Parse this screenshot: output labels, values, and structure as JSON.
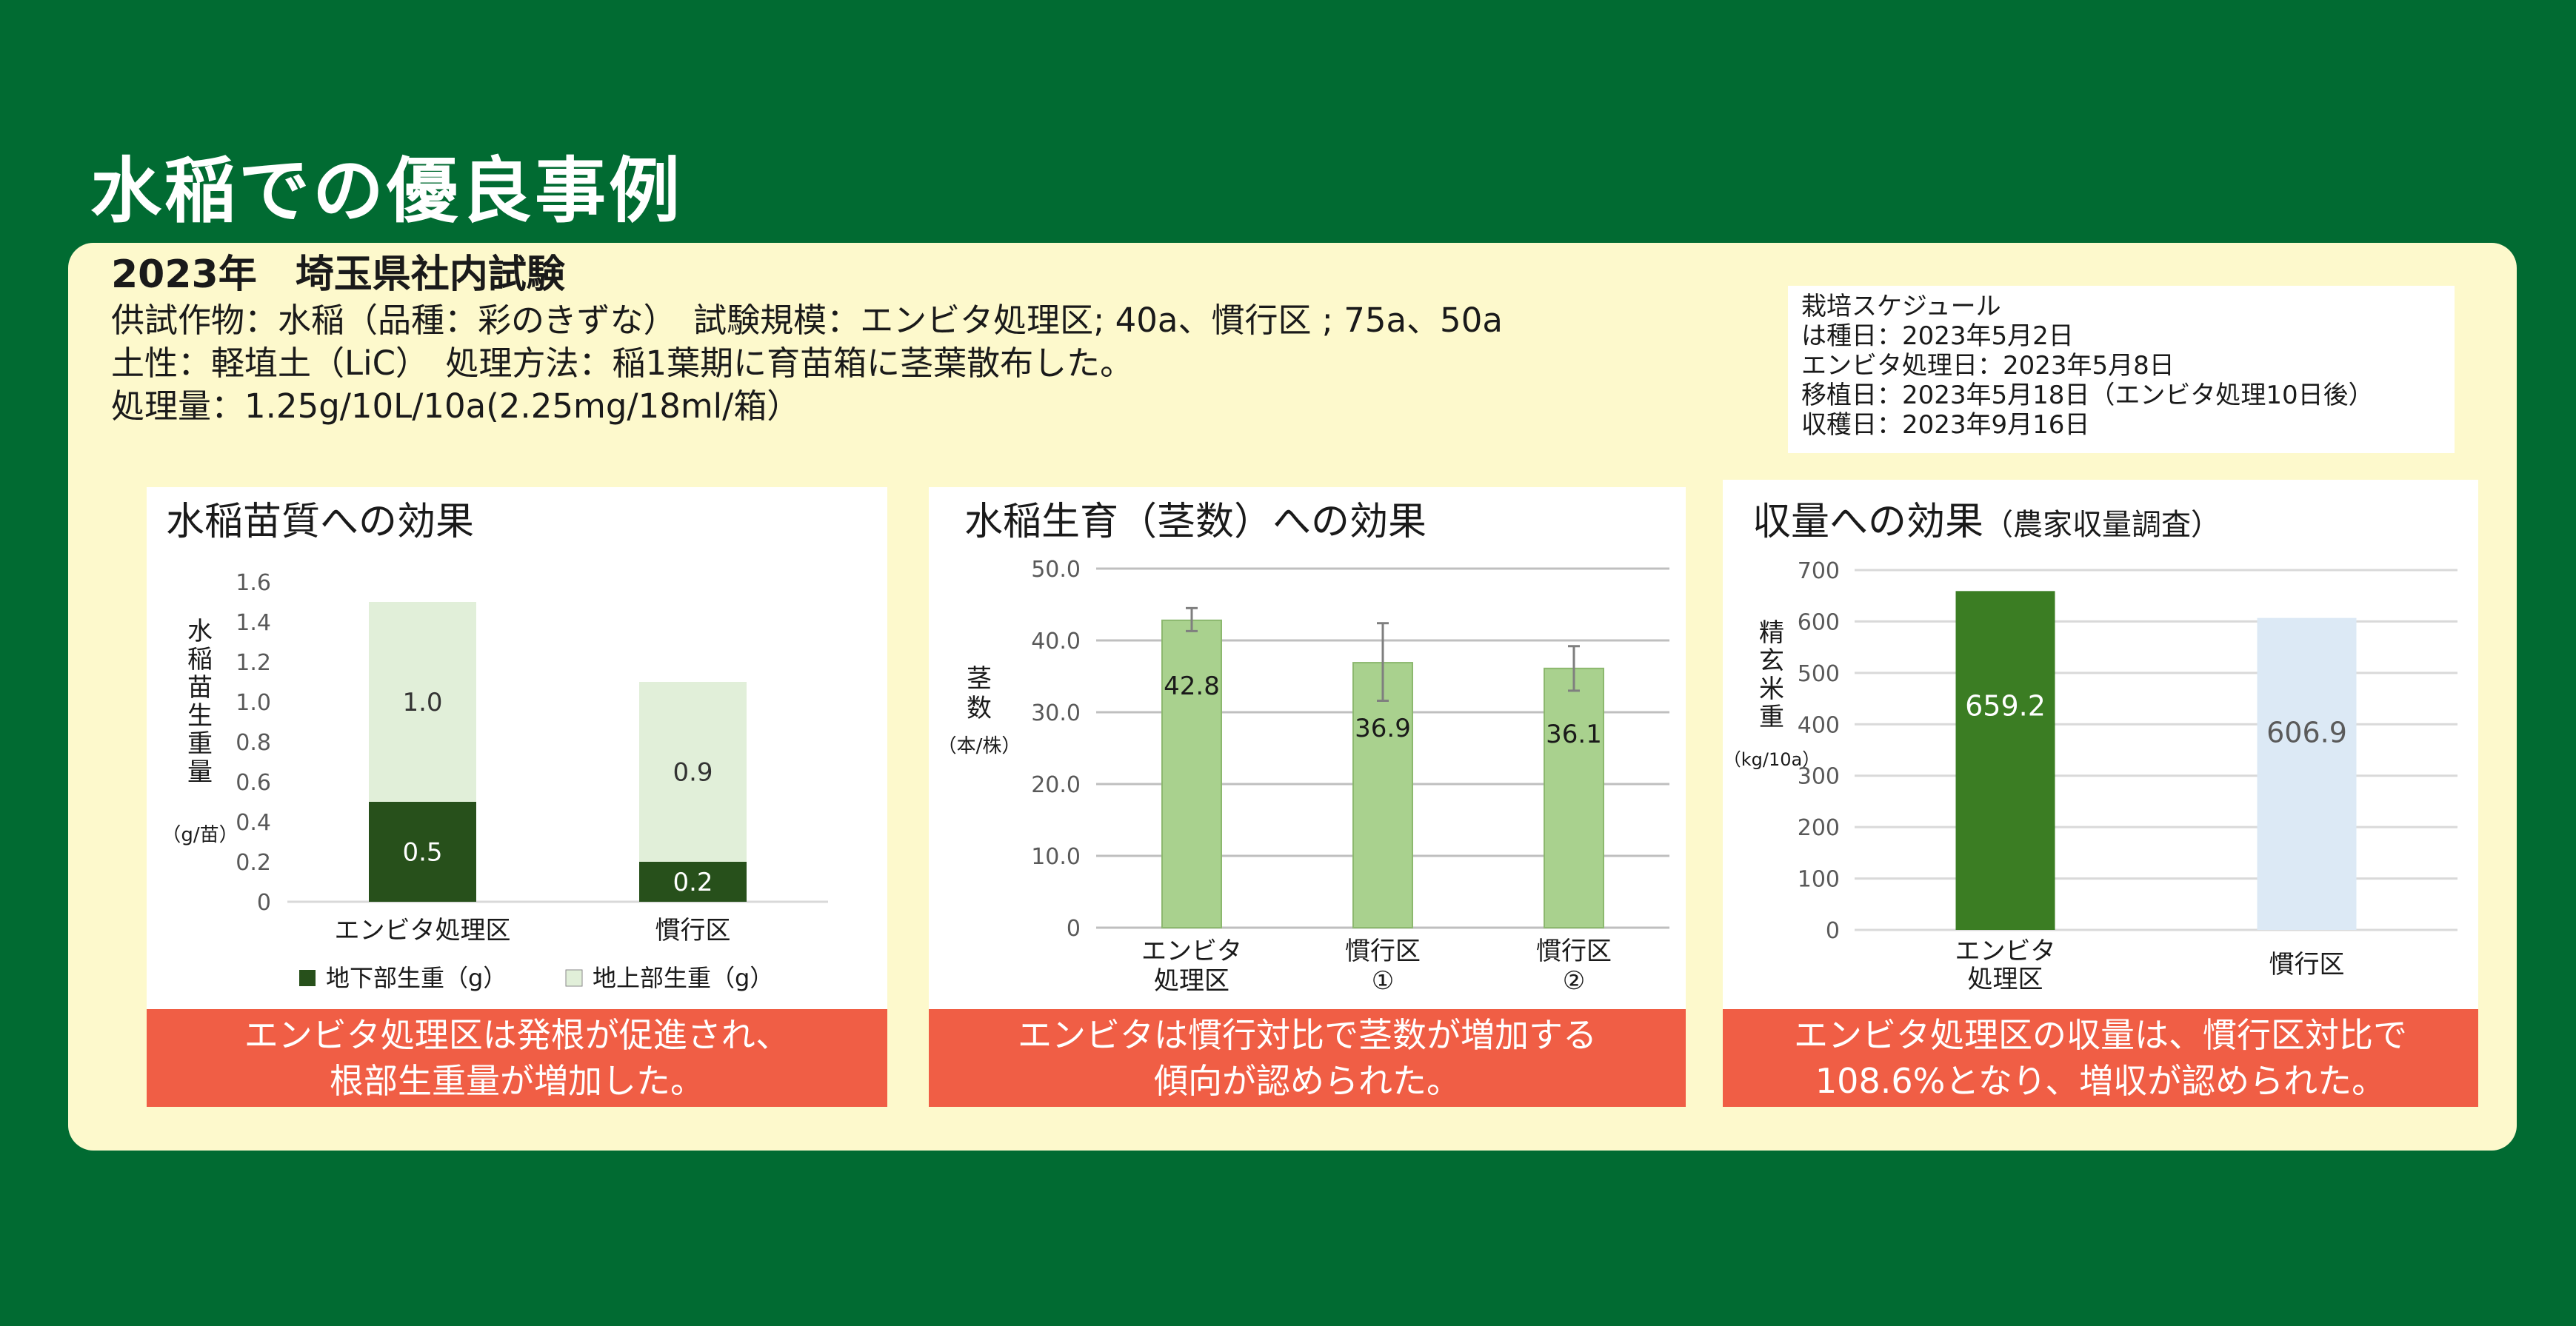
{
  "title": "水稲での優良事例",
  "trial": {
    "heading": "2023年　埼玉県社内試験",
    "lines": [
      "供試作物：水稲（品種：彩のきずな）　試験規模：エンビタ処理区; 40a、慣行区 ; 75a、50a",
      "土性：軽埴土（LiC）　処理方法：稲1葉期に育苗箱に茎葉散布した。",
      "処理量：1.25g/10L/10a(2.25mg/18ml/箱）"
    ]
  },
  "schedule": {
    "title": "栽培スケジュール",
    "lines": [
      "は種日：2023年5月2日",
      "エンビタ処理日：2023年5月8日",
      "移植日：2023年5月18日（エンビタ処理10日後）",
      "収穫日：2023年9月16日"
    ]
  },
  "captions": {
    "c1": [
      "エンビタ処理区は発根が促進され、",
      "根部生重量が増加した。"
    ],
    "c2": [
      "エンビタは慣行対比で茎数が増加する",
      "傾向が認められた。"
    ],
    "c3": [
      "エンビタ処理区の収量は、慣行区対比で",
      "108.6%となり、増収が認められた。"
    ]
  },
  "chart_data": [
    {
      "type": "bar",
      "stacked": true,
      "title": "水稲苗質への効果",
      "ylabel": "水稲苗生重量",
      "yunit": "（g/苗）",
      "categories": [
        "エンビタ処理区",
        "慣行区"
      ],
      "series": [
        {
          "name": "地下部生重（g）",
          "values": [
            0.5,
            0.2
          ],
          "color": "#27501b"
        },
        {
          "name": "地上部生重（g）",
          "values": [
            1.0,
            0.9
          ],
          "color": "#e1efd9"
        }
      ],
      "ylim": [
        0,
        1.6
      ],
      "yticks": [
        "0",
        "0.2",
        "0.4",
        "0.6",
        "0.8",
        "1.0",
        "1.2",
        "1.4",
        "1.6"
      ],
      "grid": false,
      "legend": "bottom"
    },
    {
      "type": "bar",
      "title": "水稲生育（茎数）への効果",
      "ylabel": "茎数",
      "yunit": "（本/株）",
      "categories": [
        [
          "エンビタ",
          "処理区"
        ],
        [
          "慣行区",
          "①"
        ],
        [
          "慣行区",
          "②"
        ]
      ],
      "values": [
        42.8,
        36.9,
        36.1
      ],
      "error_bars": [
        [
          41.3,
          44.5
        ],
        [
          31.6,
          42.4
        ],
        [
          33.0,
          39.2
        ]
      ],
      "color": "#a9d18e",
      "ylim": [
        0,
        50
      ],
      "yticks": [
        "0",
        "10.0",
        "20.0",
        "30.0",
        "40.0",
        "50.0"
      ],
      "grid": true
    },
    {
      "type": "bar",
      "title": "収量への効果",
      "title_note": "（農家収量調査）",
      "ylabel": "精玄米重",
      "yunit": "（kg/10a）",
      "categories": [
        [
          "エンビタ",
          "処理区"
        ],
        [
          "慣行区"
        ]
      ],
      "values": [
        659.2,
        606.9
      ],
      "colors": [
        "#3b7d23",
        "#dce9f5"
      ],
      "label_colors": [
        "#ffffff",
        "#5a5a5a"
      ],
      "ylim": [
        0,
        700
      ],
      "yticks": [
        "0",
        "100",
        "200",
        "300",
        "400",
        "500",
        "600",
        "700"
      ],
      "grid": true
    }
  ]
}
